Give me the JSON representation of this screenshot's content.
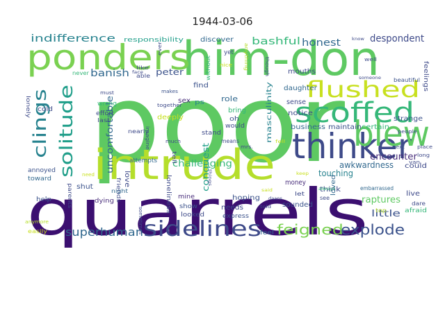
{
  "title": "1944-03-06",
  "words": [
    {
      "text": "poor",
      "color": "#5ec962"
    },
    {
      "text": "quarrels",
      "color": "#3b0f70"
    },
    {
      "text": "him-don",
      "color": "#5ec962"
    },
    {
      "text": "ponders",
      "color": "#7ad151"
    },
    {
      "text": "intrude",
      "color": "#b5de2b"
    },
    {
      "text": "thinker",
      "color": "#3e4a89"
    },
    {
      "text": "scoffed",
      "color": "#35b779"
    },
    {
      "text": "flushed",
      "color": "#c8e020"
    },
    {
      "text": "blew",
      "color": "#5ec962"
    },
    {
      "text": "sidelines",
      "color": "#3e4a89"
    },
    {
      "text": "clings",
      "color": "#26828e"
    },
    {
      "text": "solitude",
      "color": "#1f9e89"
    },
    {
      "text": "feigned",
      "color": "#7ad151"
    },
    {
      "text": "explode",
      "color": "#3b528b"
    },
    {
      "text": "superhuman",
      "color": "#31688e"
    },
    {
      "text": "indifference",
      "color": "#26828e"
    },
    {
      "text": "despondent",
      "color": "#3e4a89"
    },
    {
      "text": "bashful",
      "color": "#35b779"
    },
    {
      "text": "honest",
      "color": "#31688e"
    },
    {
      "text": "banish",
      "color": "#31688e"
    },
    {
      "text": "peter",
      "color": "#3b528b"
    },
    {
      "text": "encounter",
      "color": "#472c7a"
    },
    {
      "text": "challenging",
      "color": "#35b779"
    },
    {
      "text": "uncomfortable",
      "color": "#31688e"
    },
    {
      "text": "conquest",
      "color": "#1f9e89"
    },
    {
      "text": "awkwardness",
      "color": "#31688e"
    },
    {
      "text": "touching",
      "color": "#26828e"
    },
    {
      "text": "raptures",
      "color": "#5ec962"
    },
    {
      "text": "little",
      "color": "#3b528b"
    },
    {
      "text": "masculinity",
      "color": "#26828e"
    },
    {
      "text": "role",
      "color": "#31688e"
    },
    {
      "text": "sense",
      "color": "#3e4a89"
    },
    {
      "text": "notice",
      "color": "#3e4a89"
    },
    {
      "text": "strange",
      "color": "#3b528b"
    },
    {
      "text": "business",
      "color": "#31688e"
    },
    {
      "text": "maintain",
      "color": "#3b528b"
    },
    {
      "text": "certain",
      "color": "#35b779"
    },
    {
      "text": "daughter",
      "color": "#31688e"
    },
    {
      "text": "mouths",
      "color": "#3e4a89"
    },
    {
      "text": "discover",
      "color": "#31688e"
    },
    {
      "text": "responsibility",
      "color": "#1f9e89"
    },
    {
      "text": "feelings",
      "color": "#3e4a89"
    },
    {
      "text": "beautiful",
      "color": "#3b528b"
    },
    {
      "text": "hoping",
      "color": "#3b528b"
    },
    {
      "text": "money",
      "color": "#472c7a"
    },
    {
      "text": "think",
      "color": "#3e4a89"
    },
    {
      "text": "embarrassed",
      "color": "#31688e"
    },
    {
      "text": "live",
      "color": "#3e4a89"
    },
    {
      "text": "loved",
      "color": "#31688e"
    },
    {
      "text": "needs",
      "color": "#3e4a89"
    },
    {
      "text": "sounded",
      "color": "#3b528b"
    },
    {
      "text": "shut",
      "color": "#3b528b"
    },
    {
      "text": "love",
      "color": "#3e4a89"
    },
    {
      "text": "could",
      "color": "#3e4a89"
    },
    {
      "text": "express",
      "color": "#3b528b"
    },
    {
      "text": "looked",
      "color": "#3e4a89"
    },
    {
      "text": "show",
      "color": "#3b528b"
    },
    {
      "text": "mine",
      "color": "#472c7a"
    },
    {
      "text": "loneliness",
      "color": "#3e4a89"
    },
    {
      "text": "feel",
      "color": "#31688e"
    },
    {
      "text": "afraid",
      "color": "#35b779"
    },
    {
      "text": "dare",
      "color": "#3e4a89"
    },
    {
      "text": "top",
      "color": "#b5de2b"
    },
    {
      "text": "help",
      "color": "#3b528b"
    },
    {
      "text": "toward",
      "color": "#31688e"
    },
    {
      "text": "annoyed",
      "color": "#3b528b"
    },
    {
      "text": "cold",
      "color": "#3e4a89"
    },
    {
      "text": "lonely",
      "color": "#3e4a89"
    },
    {
      "text": "easily",
      "color": "#c8e020"
    },
    {
      "text": "anymore",
      "color": "#b5de2b"
    },
    {
      "text": "parents",
      "color": "#3e4a89"
    },
    {
      "text": "dying",
      "color": "#472c7a"
    },
    {
      "text": "friends",
      "color": "#3e4a89"
    },
    {
      "text": "night",
      "color": "#31688e"
    },
    {
      "text": "attempts",
      "color": "#31688e"
    },
    {
      "text": "nearly",
      "color": "#3e4a89"
    },
    {
      "text": "deeply",
      "color": "#c8e020"
    },
    {
      "text": "together",
      "color": "#3e4a89"
    },
    {
      "text": "sex",
      "color": "#472c7a"
    },
    {
      "text": "ps",
      "color": "#26828e"
    },
    {
      "text": "bring",
      "color": "#35b779"
    },
    {
      "text": "oh",
      "color": "#3b528b"
    },
    {
      "text": "would",
      "color": "#3e4a89"
    },
    {
      "text": "find",
      "color": "#3b528b"
    },
    {
      "text": "without",
      "color": "#35b779"
    },
    {
      "text": "imagine",
      "color": "#3e4a89"
    },
    {
      "text": "effort",
      "color": "#3e4a89"
    },
    {
      "text": "wrong",
      "color": "#35b779"
    },
    {
      "text": "last",
      "color": "#3e4a89"
    },
    {
      "text": "able",
      "color": "#3e4a89"
    },
    {
      "text": "never",
      "color": "#35b779"
    },
    {
      "text": "like",
      "color": "#3e4a89"
    },
    {
      "text": "ever",
      "color": "#3e4a89"
    },
    {
      "text": "must",
      "color": "#3e4a89"
    },
    {
      "text": "makes",
      "color": "#3b528b"
    },
    {
      "text": "yet",
      "color": "#3e4a89"
    },
    {
      "text": "nice",
      "color": "#c8e020"
    },
    {
      "text": "anything",
      "color": "#b5de2b"
    },
    {
      "text": "though",
      "color": "#3e4a89"
    },
    {
      "text": "well",
      "color": "#3e4a89"
    },
    {
      "text": "someone",
      "color": "#3e4a89"
    },
    {
      "text": "know",
      "color": "#3e4a89"
    },
    {
      "text": "people",
      "color": "#3e4a89"
    },
    {
      "text": "next",
      "color": "#3b528b"
    },
    {
      "text": "van",
      "color": "#3e4a89"
    },
    {
      "text": "place",
      "color": "#3e4a89"
    },
    {
      "text": "long",
      "color": "#3e4a89"
    },
    {
      "text": "always",
      "color": "#35b779"
    },
    {
      "text": "keep",
      "color": "#c8e020"
    },
    {
      "text": "said",
      "color": "#c8e020"
    },
    {
      "text": "see",
      "color": "#3e4a89"
    },
    {
      "text": "let",
      "color": "#3e4a89"
    },
    {
      "text": "told",
      "color": "#3e4a89"
    },
    {
      "text": "daans",
      "color": "#3e4a89"
    },
    {
      "text": "mrs.",
      "color": "#3e4a89"
    },
    {
      "text": "tell",
      "color": "#3e4a89"
    },
    {
      "text": "means",
      "color": "#3e4a89"
    },
    {
      "text": "much",
      "color": "#3e4a89"
    },
    {
      "text": "face",
      "color": "#3e4a89"
    },
    {
      "text": "need",
      "color": "#c8e020"
    },
    {
      "text": "sometimes",
      "color": "#3e4a89"
    },
    {
      "text": "things",
      "color": "#3e4a89"
    },
    {
      "text": "stand",
      "color": "#3e4a89"
    },
    {
      "text": "fell",
      "color": "#c8e020"
    }
  ]
}
